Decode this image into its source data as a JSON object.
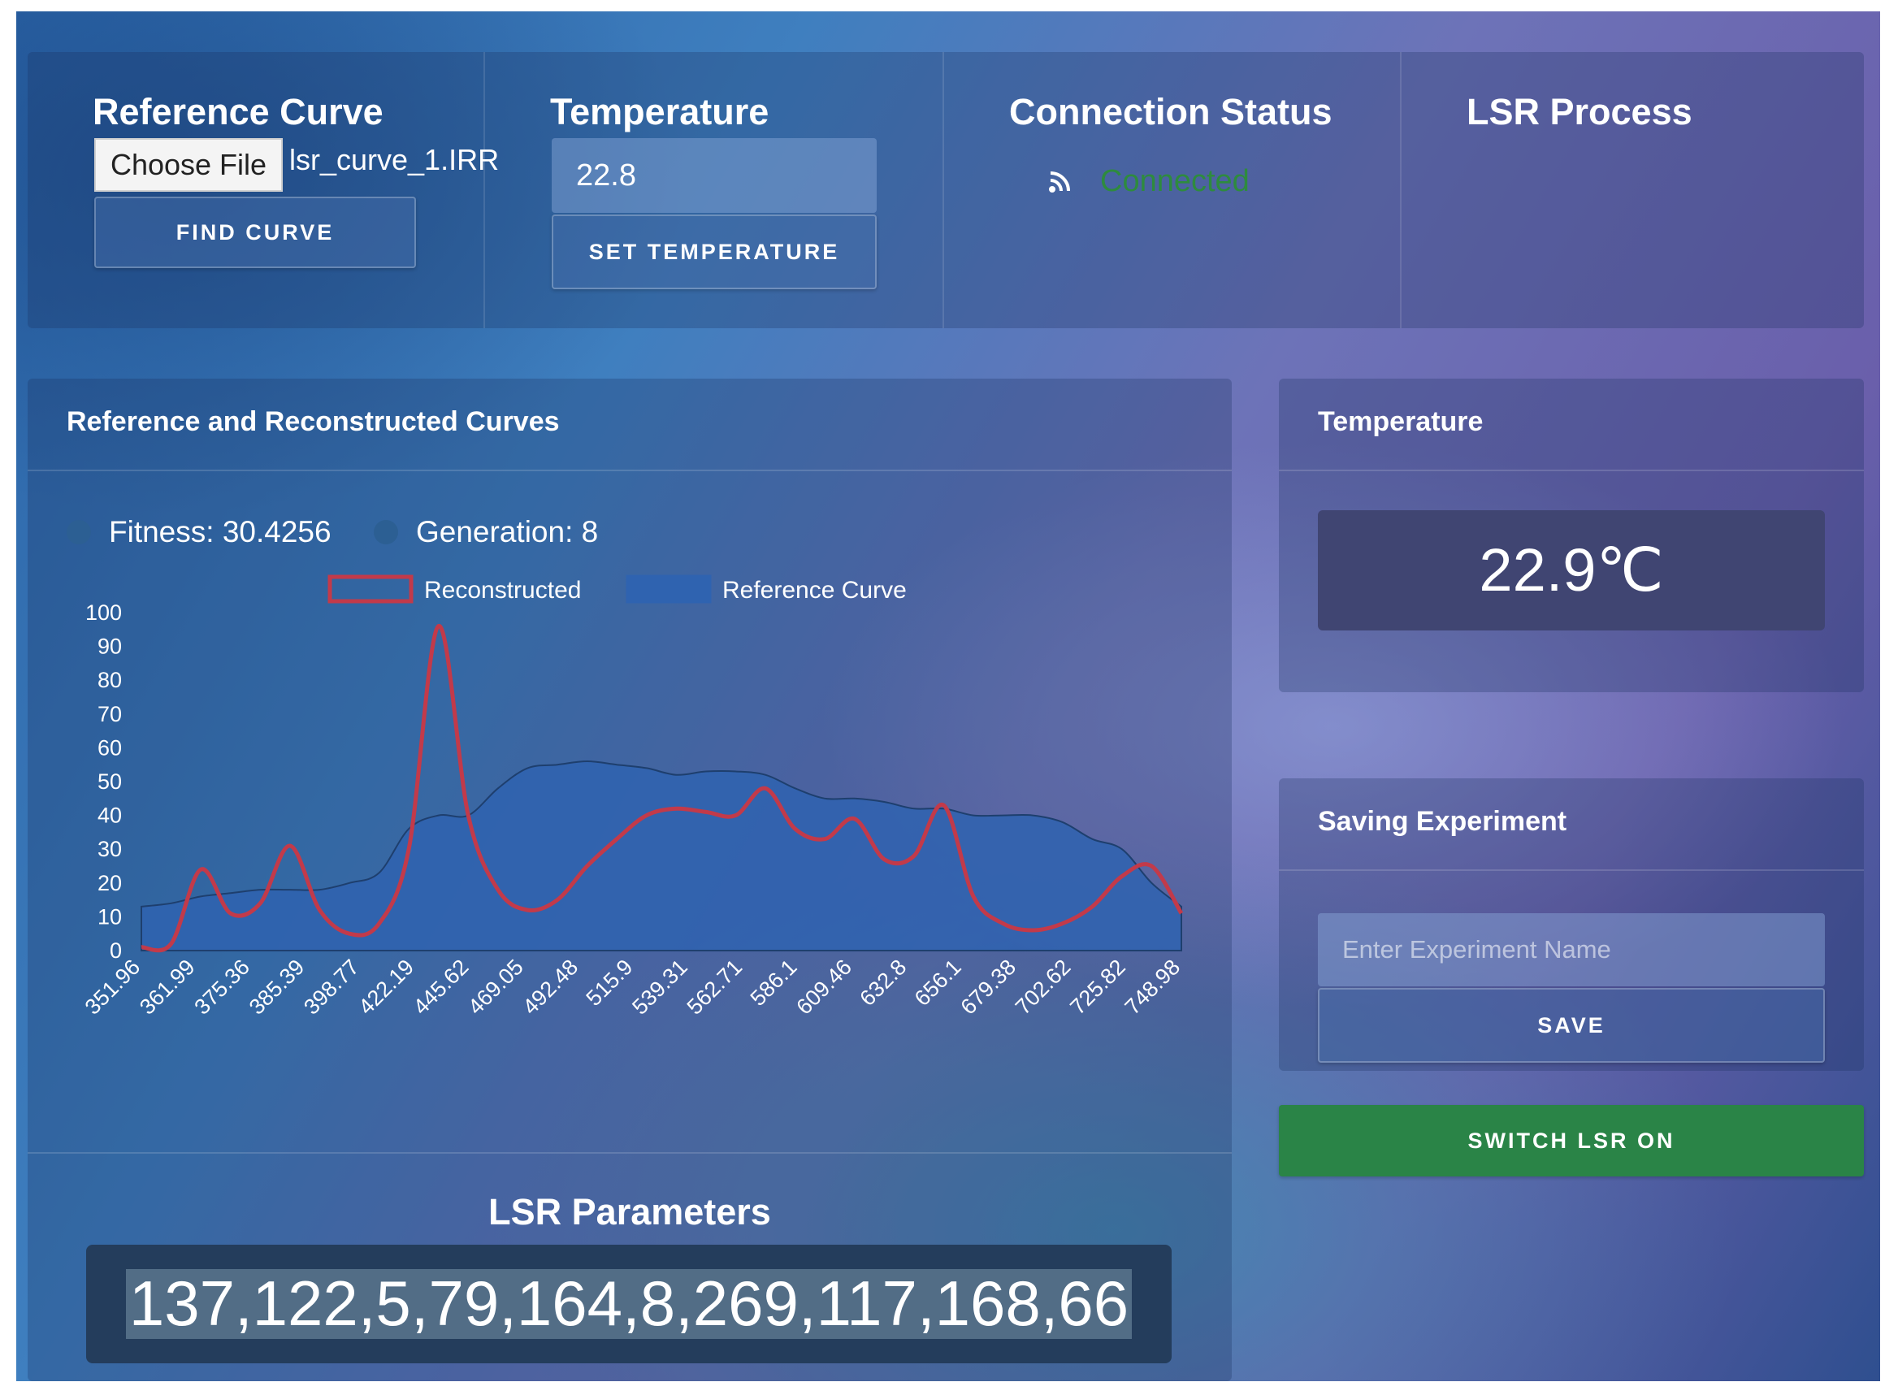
{
  "header": {
    "reference": {
      "title": "Reference Curve",
      "choose_file_label": "Choose File",
      "file_name": "lsr_curve_1.IRR",
      "find_button": "FIND CURVE"
    },
    "temperature": {
      "title": "Temperature",
      "input_value": "22.8",
      "set_button": "SET TEMPERATURE"
    },
    "connection": {
      "title": "Connection Status",
      "status": "Connected",
      "status_color": "#2e8b3e",
      "icon": "rss-icon"
    },
    "lsr": {
      "title": "LSR Process"
    }
  },
  "curves_panel": {
    "title": "Reference and Reconstructed Curves",
    "fitness_label": "Fitness: 30.4256",
    "generation_label": "Generation: 8"
  },
  "chart_data": {
    "type": "area",
    "series": [
      {
        "name": "Reconstructed",
        "color": "#c23a4a",
        "style": "line",
        "values": [
          1,
          2,
          24,
          11,
          14,
          31,
          12,
          5,
          8,
          30,
          96,
          40,
          18,
          12,
          15,
          25,
          33,
          40,
          42,
          41,
          40,
          48,
          36,
          33,
          39,
          27,
          28,
          43,
          16,
          8,
          6,
          8,
          13,
          22,
          25,
          11
        ]
      },
      {
        "name": "Reference Curve",
        "color": "#2f63b0",
        "style": "area",
        "values": [
          13,
          14,
          16,
          17,
          18,
          18,
          18,
          20,
          23,
          36,
          40,
          40,
          48,
          54,
          55,
          56,
          55,
          54,
          52,
          53,
          53,
          52,
          48,
          45,
          45,
          44,
          42,
          42,
          40,
          40,
          40,
          38,
          33,
          30,
          20,
          13
        ]
      }
    ],
    "x_tick_labels": [
      "351.96",
      "361.99",
      "375.36",
      "385.39",
      "398.77",
      "422.19",
      "445.62",
      "469.05",
      "492.48",
      "515.9",
      "539.31",
      "562.71",
      "586.1",
      "609.46",
      "632.8",
      "656.1",
      "679.38",
      "702.62",
      "725.82",
      "748.98"
    ],
    "y_ticks": [
      0,
      10,
      20,
      30,
      40,
      50,
      60,
      70,
      80,
      90,
      100
    ],
    "ylim": [
      0,
      100
    ],
    "legend": "top-center"
  },
  "lsr_params": {
    "title": "LSR Parameters",
    "value": "137,122,5,79,164,8,269,117,168,66"
  },
  "temperature_panel": {
    "title": "Temperature",
    "value": "22.9℃"
  },
  "saving": {
    "title": "Saving Experiment",
    "placeholder": "Enter Experiment Name",
    "save_button": "SAVE"
  },
  "switch_button": {
    "label": "SWITCH LSR ON",
    "color": "#2a8447"
  }
}
